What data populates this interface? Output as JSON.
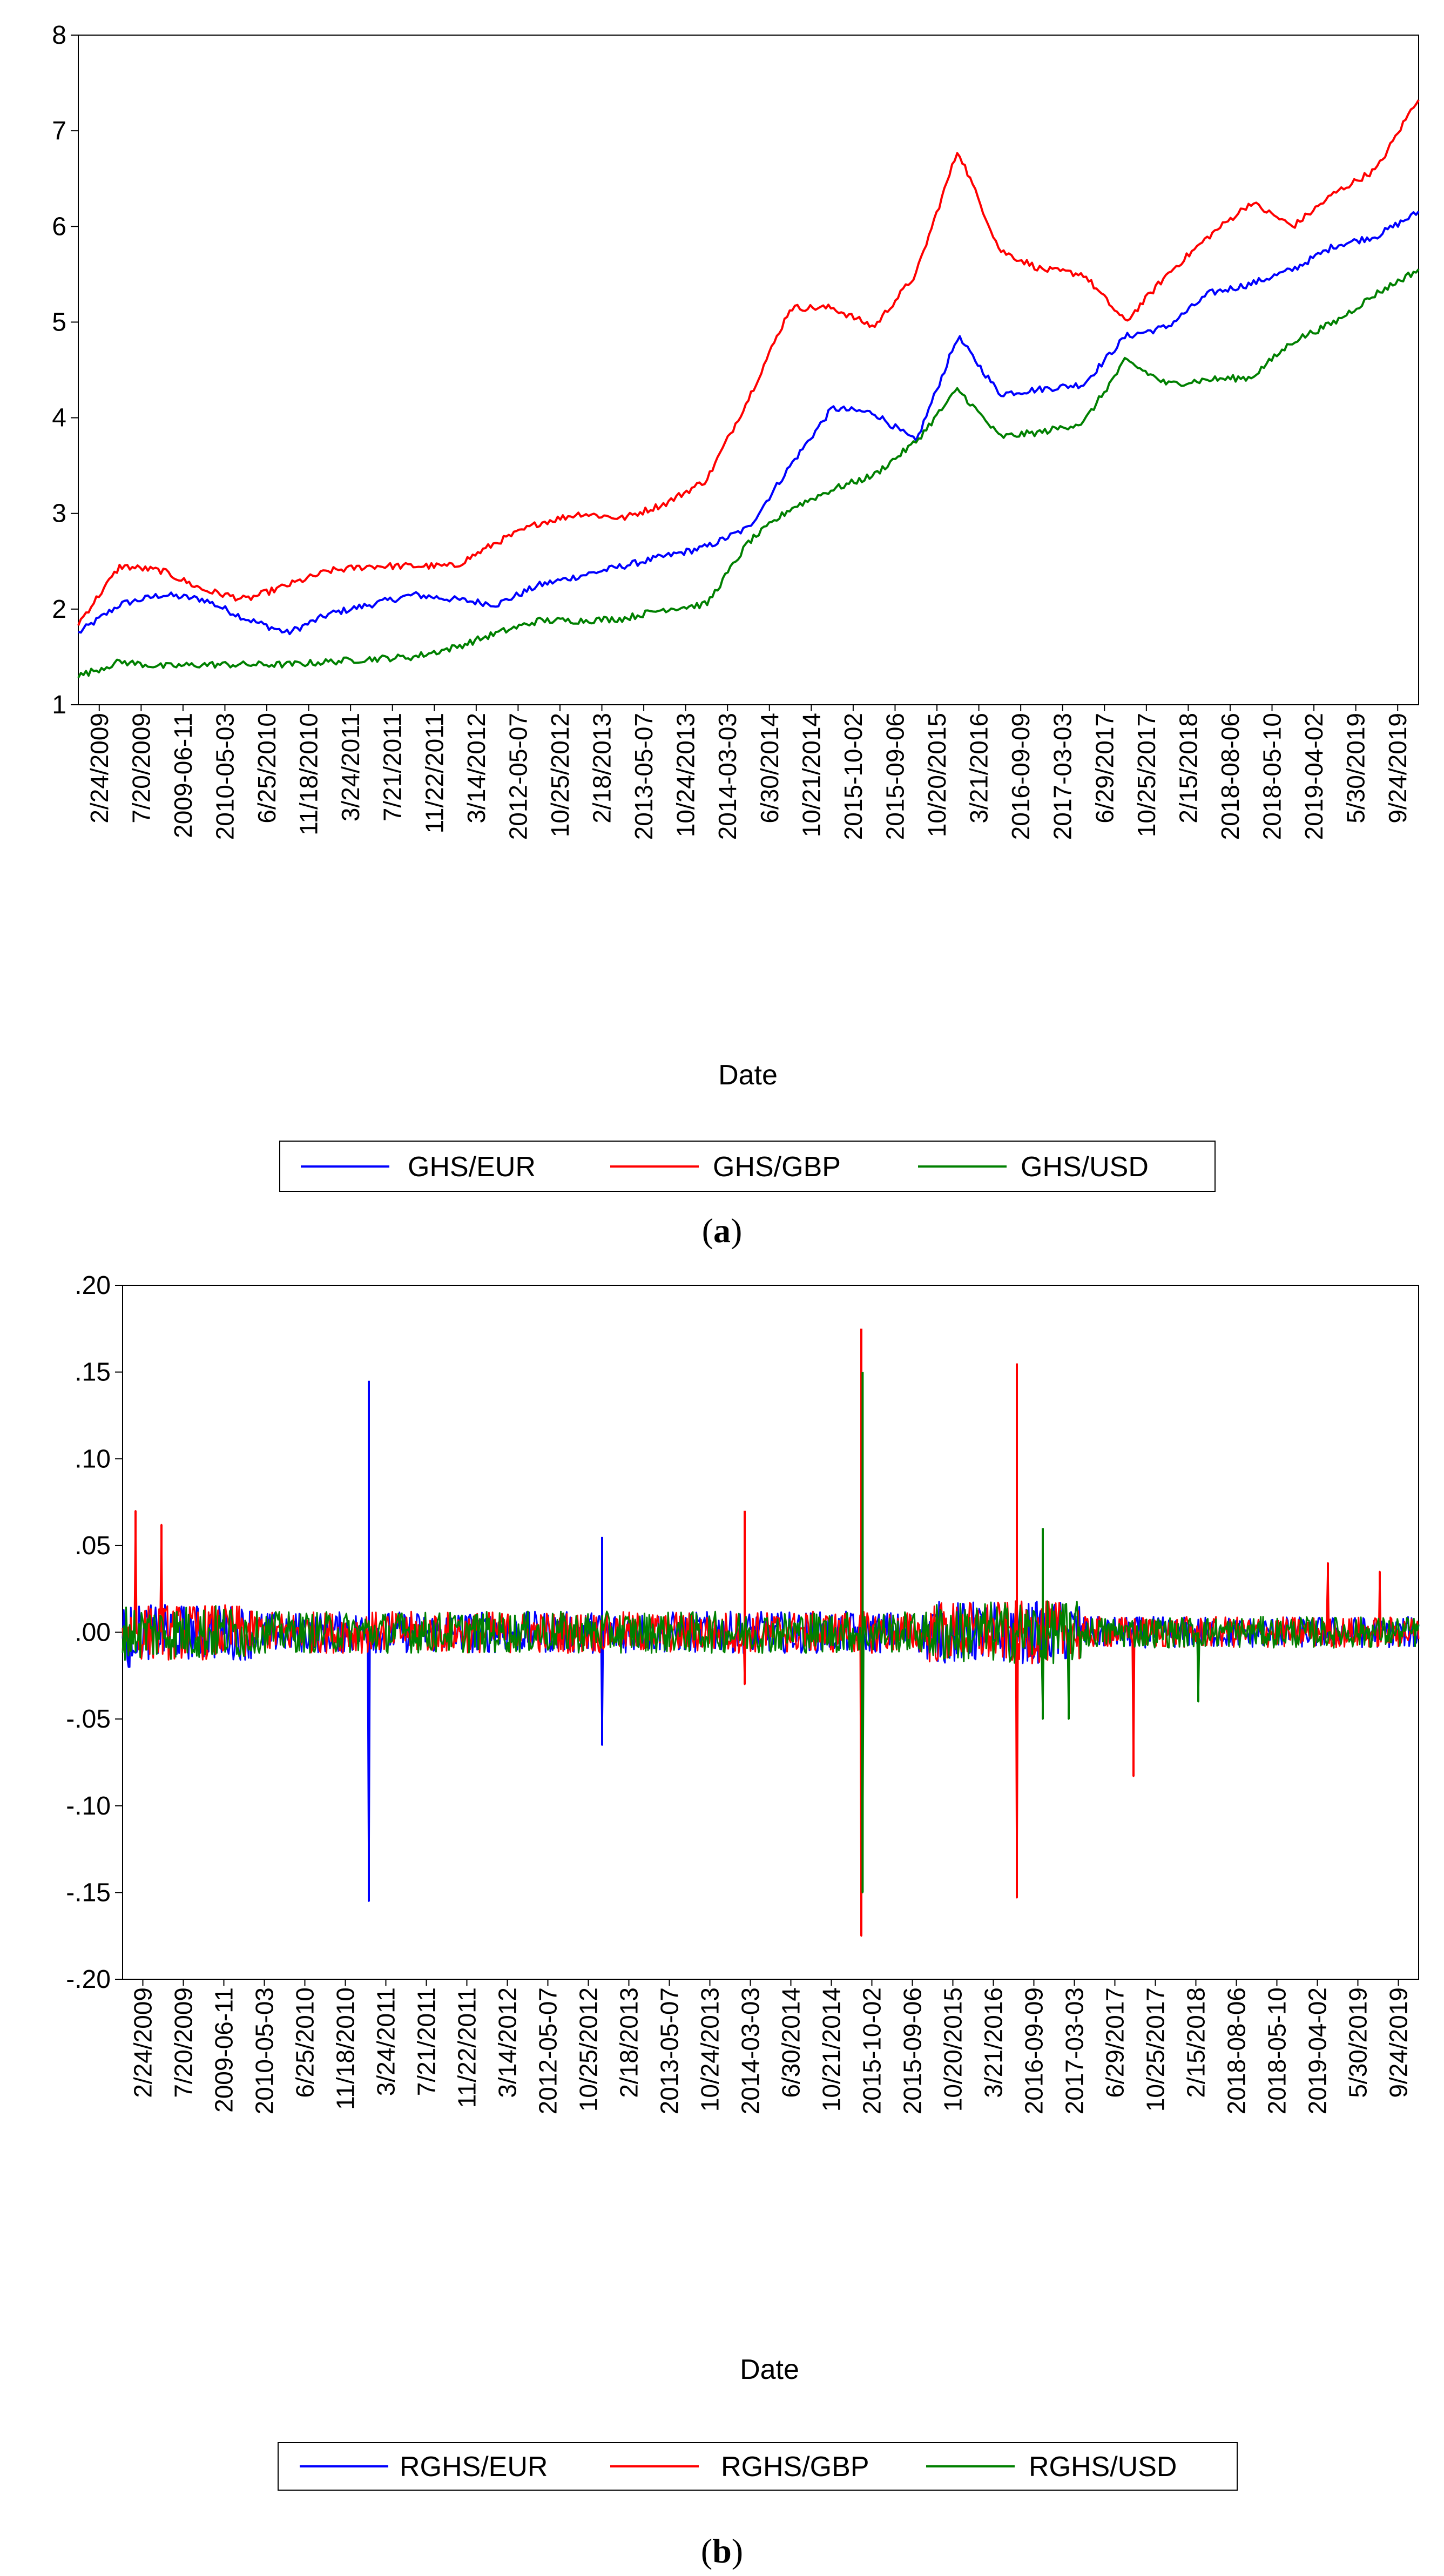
{
  "colors": {
    "eur": "#0000ff",
    "gbp": "#ff0000",
    "usd": "#008000",
    "axis": "#000000"
  },
  "chart_data": [
    {
      "type": "line",
      "caption_open": "(",
      "caption_letter": "a",
      "caption_close": ")",
      "xlabel": "Date",
      "ylabel": "",
      "ylim": [
        1,
        8
      ],
      "yticks": [
        "1",
        "2",
        "3",
        "4",
        "5",
        "6",
        "7",
        "8"
      ],
      "ytick_values": [
        1,
        2,
        3,
        4,
        5,
        6,
        7,
        8
      ],
      "x_tick_labels": [
        "2/24/2009",
        "7/20/2009",
        "2009-06-11",
        "2010-05-03",
        "6/25/2010",
        "11/18/2010",
        "3/24/2011",
        "7/21/2011",
        "11/22/2011",
        "3/14/2012",
        "2012-05-07",
        "10/25/2012",
        "2/18/2013",
        "2013-05-07",
        "10/24/2013",
        "2014-03-03",
        "6/30/2014",
        "10/21/2014",
        "2015-10-02",
        "2015-09-06",
        "10/20/2015",
        "3/21/2016",
        "2016-09-09",
        "2017-03-03",
        "6/29/2017",
        "10/25/2017",
        "2/15/2018",
        "2018-08-06",
        "2018-05-10",
        "2019-04-02",
        "5/30/2019",
        "9/24/2019"
      ],
      "legend_position": "bottom-center",
      "series": [
        {
          "name": "GHS/EUR",
          "color": "#0000ff",
          "values": [
            1.75,
            2.05,
            2.15,
            2.1,
            1.9,
            1.75,
            1.95,
            2.05,
            2.15,
            2.1,
            2.05,
            2.25,
            2.35,
            2.45,
            2.55,
            2.65,
            2.85,
            3.5,
            4.1,
            4.05,
            3.75,
            4.85,
            4.25,
            4.3,
            4.35,
            4.85,
            4.95,
            5.3,
            5.4,
            5.55,
            5.8,
            5.9,
            6.15
          ]
        },
        {
          "name": "GHS/GBP",
          "color": "#ff0000",
          "values": [
            1.85,
            2.45,
            2.4,
            2.2,
            2.1,
            2.25,
            2.4,
            2.45,
            2.45,
            2.45,
            2.7,
            2.9,
            3.0,
            2.95,
            3.1,
            3.35,
            4.2,
            5.15,
            5.15,
            4.95,
            5.5,
            6.8,
            5.75,
            5.55,
            5.5,
            5.0,
            5.5,
            5.9,
            6.25,
            6.0,
            6.35,
            6.6,
            7.35
          ]
        },
        {
          "name": "GHS/USD",
          "color": "#008000",
          "values": [
            1.3,
            1.45,
            1.4,
            1.42,
            1.42,
            1.42,
            1.45,
            1.48,
            1.5,
            1.6,
            1.75,
            1.88,
            1.88,
            1.9,
            2.0,
            2.05,
            2.7,
            3.05,
            3.25,
            3.4,
            3.75,
            4.3,
            3.8,
            3.85,
            3.95,
            4.6,
            4.35,
            4.4,
            4.42,
            4.8,
            5.0,
            5.3,
            5.55
          ]
        }
      ]
    },
    {
      "type": "line",
      "caption_open": "(",
      "caption_letter": "b",
      "caption_close": ")",
      "xlabel": "Date",
      "ylabel": "",
      "ylim": [
        -0.2,
        0.2
      ],
      "yticks": [
        ".20",
        ".15",
        ".10",
        ".05",
        ".00",
        "-.05",
        "-.10",
        "-.15",
        "-.20"
      ],
      "ytick_values": [
        0.2,
        0.15,
        0.1,
        0.05,
        0.0,
        -0.05,
        -0.1,
        -0.15,
        -0.2
      ],
      "x_tick_labels": [
        "2/24/2009",
        "7/20/2009",
        "2009-06-11",
        "2010-05-03",
        "6/25/2010",
        "11/18/2010",
        "3/24/2011",
        "7/21/2011",
        "11/22/2011",
        "3/14/2012",
        "2012-05-07",
        "10/25/2012",
        "2/18/2013",
        "2013-05-07",
        "10/24/2013",
        "2014-03-03",
        "6/30/2014",
        "10/21/2014",
        "2015-10-02",
        "2015-09-06",
        "10/20/2015",
        "3/21/2016",
        "2016-09-09",
        "2017-03-03",
        "6/29/2017",
        "10/25/2017",
        "2/15/2018",
        "2018-08-06",
        "2018-05-10",
        "2019-04-02",
        "5/30/2019",
        "9/24/2019"
      ],
      "legend_position": "bottom-center",
      "series": [
        {
          "name": "RGHS/EUR",
          "color": "#0000ff",
          "spikes": [
            [
              0.005,
              -0.02
            ],
            [
              0.19,
              0.145
            ],
            [
              0.19,
              -0.155
            ],
            [
              0.37,
              0.055
            ],
            [
              0.37,
              -0.065
            ],
            [
              0.71,
              0.035
            ],
            [
              0.71,
              -0.045
            ]
          ]
        },
        {
          "name": "RGHS/GBP",
          "color": "#ff0000",
          "spikes": [
            [
              0.01,
              0.07
            ],
            [
              0.03,
              0.062
            ],
            [
              0.48,
              0.07
            ],
            [
              0.48,
              -0.03
            ],
            [
              0.57,
              0.175
            ],
            [
              0.57,
              -0.175
            ],
            [
              0.69,
              0.155
            ],
            [
              0.69,
              -0.153
            ],
            [
              0.78,
              -0.083
            ],
            [
              0.93,
              0.04
            ],
            [
              0.97,
              0.035
            ]
          ]
        },
        {
          "name": "RGHS/USD",
          "color": "#008000",
          "spikes": [
            [
              0.571,
              0.15
            ],
            [
              0.571,
              -0.15
            ],
            [
              0.71,
              0.06
            ],
            [
              0.71,
              -0.05
            ],
            [
              0.73,
              -0.05
            ],
            [
              0.83,
              -0.04
            ]
          ]
        }
      ]
    }
  ]
}
